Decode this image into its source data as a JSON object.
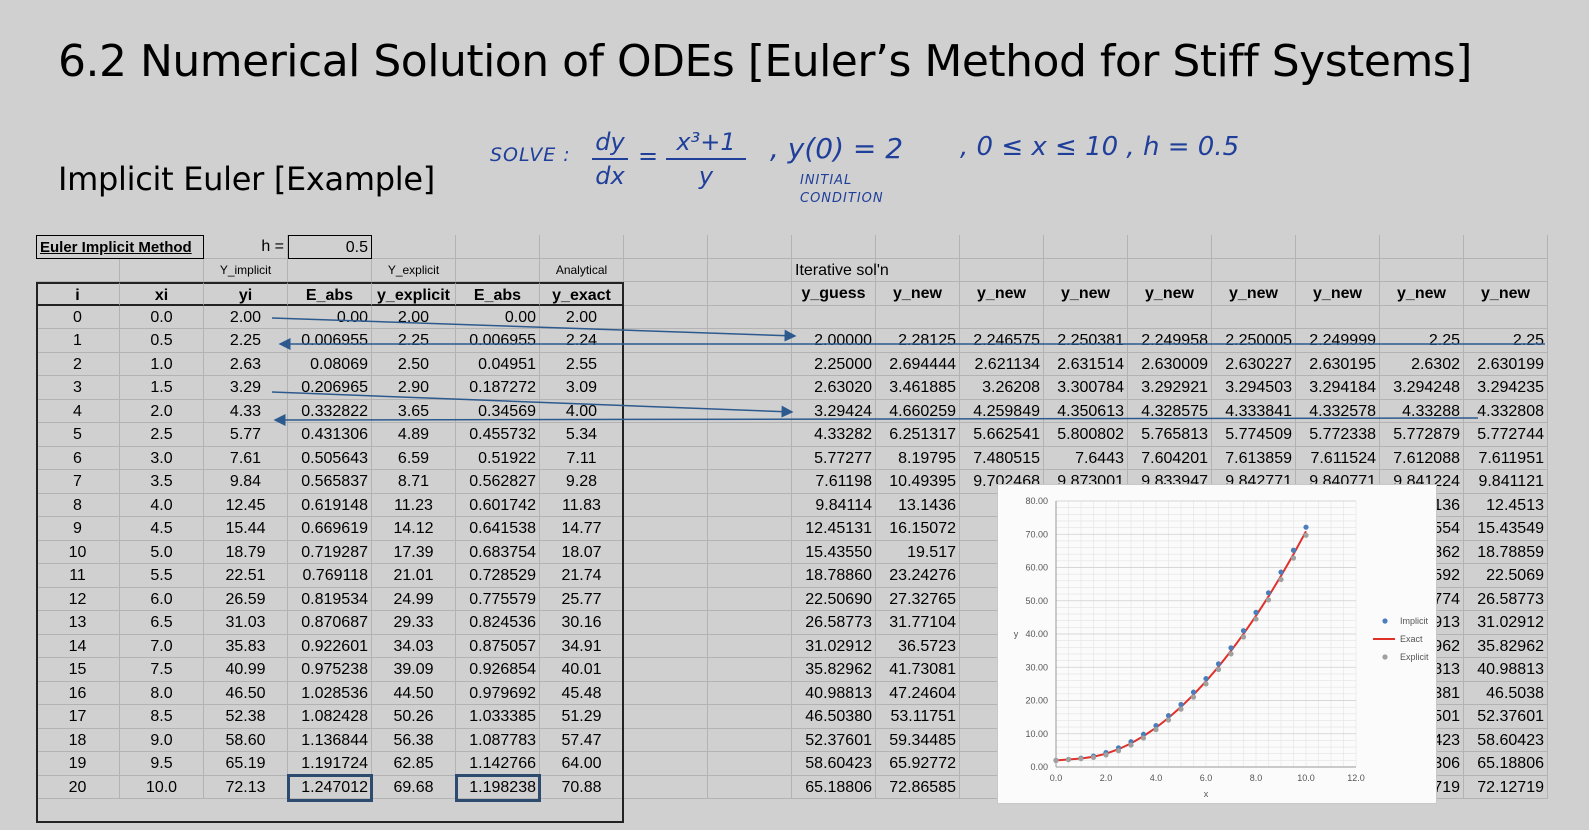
{
  "slide": {
    "title": "6.2 Numerical Solution of ODEs [Euler’s Method for Stiff Systems]",
    "subtitle": "Implicit Euler [Example]"
  },
  "handwriting": {
    "solve": "SOLVE :",
    "frac_num": "dy",
    "frac_den": "dx",
    "eq": "=",
    "rhs_num": "x³+1",
    "rhs_den": "y",
    "ic": ", y(0) = 2",
    "ic_note_1": "INITIAL",
    "ic_note_2": "CONDITION",
    "range": ", 0 ≤ x ≤ 10 , h = 0.5"
  },
  "sheet": {
    "method_label": "Euler Implicit Method",
    "h_label": "h =",
    "h_value": "0.5",
    "group_implicit": "Y_implicit",
    "group_explicit": "Y_explicit",
    "group_analytical": "Analytical",
    "iter_label": "Iterative sol'n",
    "headers_left": [
      "i",
      "xi",
      "yi",
      "E_abs",
      "y_explicit",
      "E_abs",
      "y_exact"
    ],
    "headers_right": [
      "y_guess",
      "y_new",
      "y_new",
      "y_new",
      "y_new",
      "y_new",
      "y_new",
      "y_new",
      "y_new"
    ],
    "rows_left": [
      [
        "0",
        "0.0",
        "2.00",
        "0.00",
        "2.00",
        "0.00",
        "2.00"
      ],
      [
        "1",
        "0.5",
        "2.25",
        "0.006955",
        "2.25",
        "0.006955",
        "2.24"
      ],
      [
        "2",
        "1.0",
        "2.63",
        "0.08069",
        "2.50",
        "0.04951",
        "2.55"
      ],
      [
        "3",
        "1.5",
        "3.29",
        "0.206965",
        "2.90",
        "0.187272",
        "3.09"
      ],
      [
        "4",
        "2.0",
        "4.33",
        "0.332822",
        "3.65",
        "0.34569",
        "4.00"
      ],
      [
        "5",
        "2.5",
        "5.77",
        "0.431306",
        "4.89",
        "0.455732",
        "5.34"
      ],
      [
        "6",
        "3.0",
        "7.61",
        "0.505643",
        "6.59",
        "0.51922",
        "7.11"
      ],
      [
        "7",
        "3.5",
        "9.84",
        "0.565837",
        "8.71",
        "0.562827",
        "9.28"
      ],
      [
        "8",
        "4.0",
        "12.45",
        "0.619148",
        "11.23",
        "0.601742",
        "11.83"
      ],
      [
        "9",
        "4.5",
        "15.44",
        "0.669619",
        "14.12",
        "0.641538",
        "14.77"
      ],
      [
        "10",
        "5.0",
        "18.79",
        "0.719287",
        "17.39",
        "0.683754",
        "18.07"
      ],
      [
        "11",
        "5.5",
        "22.51",
        "0.769118",
        "21.01",
        "0.728529",
        "21.74"
      ],
      [
        "12",
        "6.0",
        "26.59",
        "0.819534",
        "24.99",
        "0.775579",
        "25.77"
      ],
      [
        "13",
        "6.5",
        "31.03",
        "0.870687",
        "29.33",
        "0.824536",
        "30.16"
      ],
      [
        "14",
        "7.0",
        "35.83",
        "0.922601",
        "34.03",
        "0.875057",
        "34.91"
      ],
      [
        "15",
        "7.5",
        "40.99",
        "0.975238",
        "39.09",
        "0.926854",
        "40.01"
      ],
      [
        "16",
        "8.0",
        "46.50",
        "1.028536",
        "44.50",
        "0.979692",
        "45.48"
      ],
      [
        "17",
        "8.5",
        "52.38",
        "1.082428",
        "50.26",
        "1.033385",
        "51.29"
      ],
      [
        "18",
        "9.0",
        "58.60",
        "1.136844",
        "56.38",
        "1.087783",
        "57.47"
      ],
      [
        "19",
        "9.5",
        "65.19",
        "1.191724",
        "62.85",
        "1.142766",
        "64.00"
      ],
      [
        "20",
        "10.0",
        "72.13",
        "1.247012",
        "69.68",
        "1.198238",
        "70.88"
      ]
    ],
    "rows_right": [
      [
        "",
        "",
        "",
        "",
        "",
        "",
        "",
        "",
        ""
      ],
      [
        "2.00000",
        "2.28125",
        "2.246575",
        "2.250381",
        "2.249958",
        "2.250005",
        "2.249999",
        "2.25",
        "2.25"
      ],
      [
        "2.25000",
        "2.694444",
        "2.621134",
        "2.631514",
        "2.630009",
        "2.630227",
        "2.630195",
        "2.6302",
        "2.630199"
      ],
      [
        "2.63020",
        "3.461885",
        "3.26208",
        "3.300784",
        "3.292921",
        "3.294503",
        "3.294184",
        "3.294248",
        "3.294235"
      ],
      [
        "3.29424",
        "4.660259",
        "4.259849",
        "4.350613",
        "4.328575",
        "4.333841",
        "4.332578",
        "4.33288",
        "4.332808"
      ],
      [
        "4.33282",
        "6.251317",
        "5.662541",
        "5.800802",
        "5.765813",
        "5.774509",
        "5.772338",
        "5.772879",
        "5.772744"
      ],
      [
        "5.77277",
        "8.19795",
        "7.480515",
        "7.6443",
        "7.604201",
        "7.613859",
        "7.611524",
        "7.612088",
        "7.611951"
      ],
      [
        "7.61198",
        "10.49395",
        "9.702468",
        "9.873001",
        "9.833947",
        "9.842771",
        "9.840771",
        "9.841224",
        "9.841121"
      ],
      [
        "9.84114",
        "13.1436",
        "12.",
        "",
        "",
        "",
        "",
        "136",
        "12.4513"
      ],
      [
        "12.45131",
        "16.15072",
        "15.",
        "",
        "",
        "",
        "",
        "554",
        "15.43549"
      ],
      [
        "15.43550",
        "19.517",
        "18.",
        "",
        "",
        "",
        "",
        "362",
        "18.78859"
      ],
      [
        "18.78860",
        "23.24276",
        "22.",
        "",
        "",
        "",
        "",
        "592",
        "22.5069"
      ],
      [
        "22.50690",
        "27.32765",
        "26.",
        "",
        "",
        "",
        "",
        "774",
        "26.58773"
      ],
      [
        "26.58773",
        "31.77104",
        "30.",
        "",
        "",
        "",
        "",
        "913",
        "31.02912"
      ],
      [
        "31.02912",
        "36.5723",
        "35.",
        "",
        "",
        "",
        "",
        "962",
        "35.82962"
      ],
      [
        "35.82962",
        "41.73081",
        "40.",
        "",
        "",
        "",
        "",
        "813",
        "40.98813"
      ],
      [
        "40.98813",
        "47.24604",
        "46.",
        "",
        "",
        "",
        "",
        "381",
        "46.5038"
      ],
      [
        "46.50380",
        "53.11751",
        "52.",
        "",
        "",
        "",
        "",
        "501",
        "52.37601"
      ],
      [
        "52.37601",
        "59.34485",
        "58",
        "",
        "",
        "",
        "",
        "423",
        "58.60423"
      ],
      [
        "58.60423",
        "65.92772",
        "65",
        "",
        "",
        "",
        "",
        "306",
        "65.18806"
      ],
      [
        "65.18806",
        "72.86585",
        "72.",
        "",
        "",
        "",
        "",
        "719",
        "72.12719"
      ]
    ]
  },
  "chart_data": {
    "type": "scatter",
    "xlabel": "x",
    "ylabel": "y",
    "xlim": [
      0,
      12
    ],
    "ylim": [
      0,
      80
    ],
    "x_ticks": [
      "0.0",
      "2.0",
      "4.0",
      "6.0",
      "8.0",
      "10.0",
      "12.0"
    ],
    "y_ticks": [
      "0.00",
      "10.00",
      "20.00",
      "30.00",
      "40.00",
      "50.00",
      "60.00",
      "70.00",
      "80.00"
    ],
    "legend_position": "right",
    "grid": true,
    "x": [
      0,
      0.5,
      1,
      1.5,
      2,
      2.5,
      3,
      3.5,
      4,
      4.5,
      5,
      5.5,
      6,
      6.5,
      7,
      7.5,
      8,
      8.5,
      9,
      9.5,
      10
    ],
    "series": [
      {
        "name": "Implicit",
        "style": "markers",
        "color": "#4a7ebb",
        "values": [
          2.0,
          2.25,
          2.63,
          3.29,
          4.33,
          5.77,
          7.61,
          9.84,
          12.45,
          15.44,
          18.79,
          22.51,
          26.59,
          31.03,
          35.83,
          40.99,
          46.5,
          52.38,
          58.6,
          65.19,
          72.13
        ]
      },
      {
        "name": "Exact",
        "style": "line",
        "color": "#e0302a",
        "values": [
          2.0,
          2.24,
          2.55,
          3.09,
          4.0,
          5.34,
          7.11,
          9.28,
          11.83,
          14.77,
          18.07,
          21.74,
          25.77,
          30.16,
          34.91,
          40.01,
          45.48,
          51.29,
          57.47,
          64.0,
          70.88
        ]
      },
      {
        "name": "Explicit",
        "style": "markers",
        "color": "#a0a0a0",
        "values": [
          2.0,
          2.25,
          2.5,
          2.9,
          3.65,
          4.89,
          6.59,
          8.71,
          11.23,
          14.12,
          17.39,
          21.01,
          24.99,
          29.33,
          34.03,
          39.09,
          44.5,
          50.26,
          56.38,
          62.85,
          69.68
        ]
      }
    ]
  },
  "colors": {
    "annotation": "#2d5a8e",
    "background": "#d0d0d0"
  }
}
